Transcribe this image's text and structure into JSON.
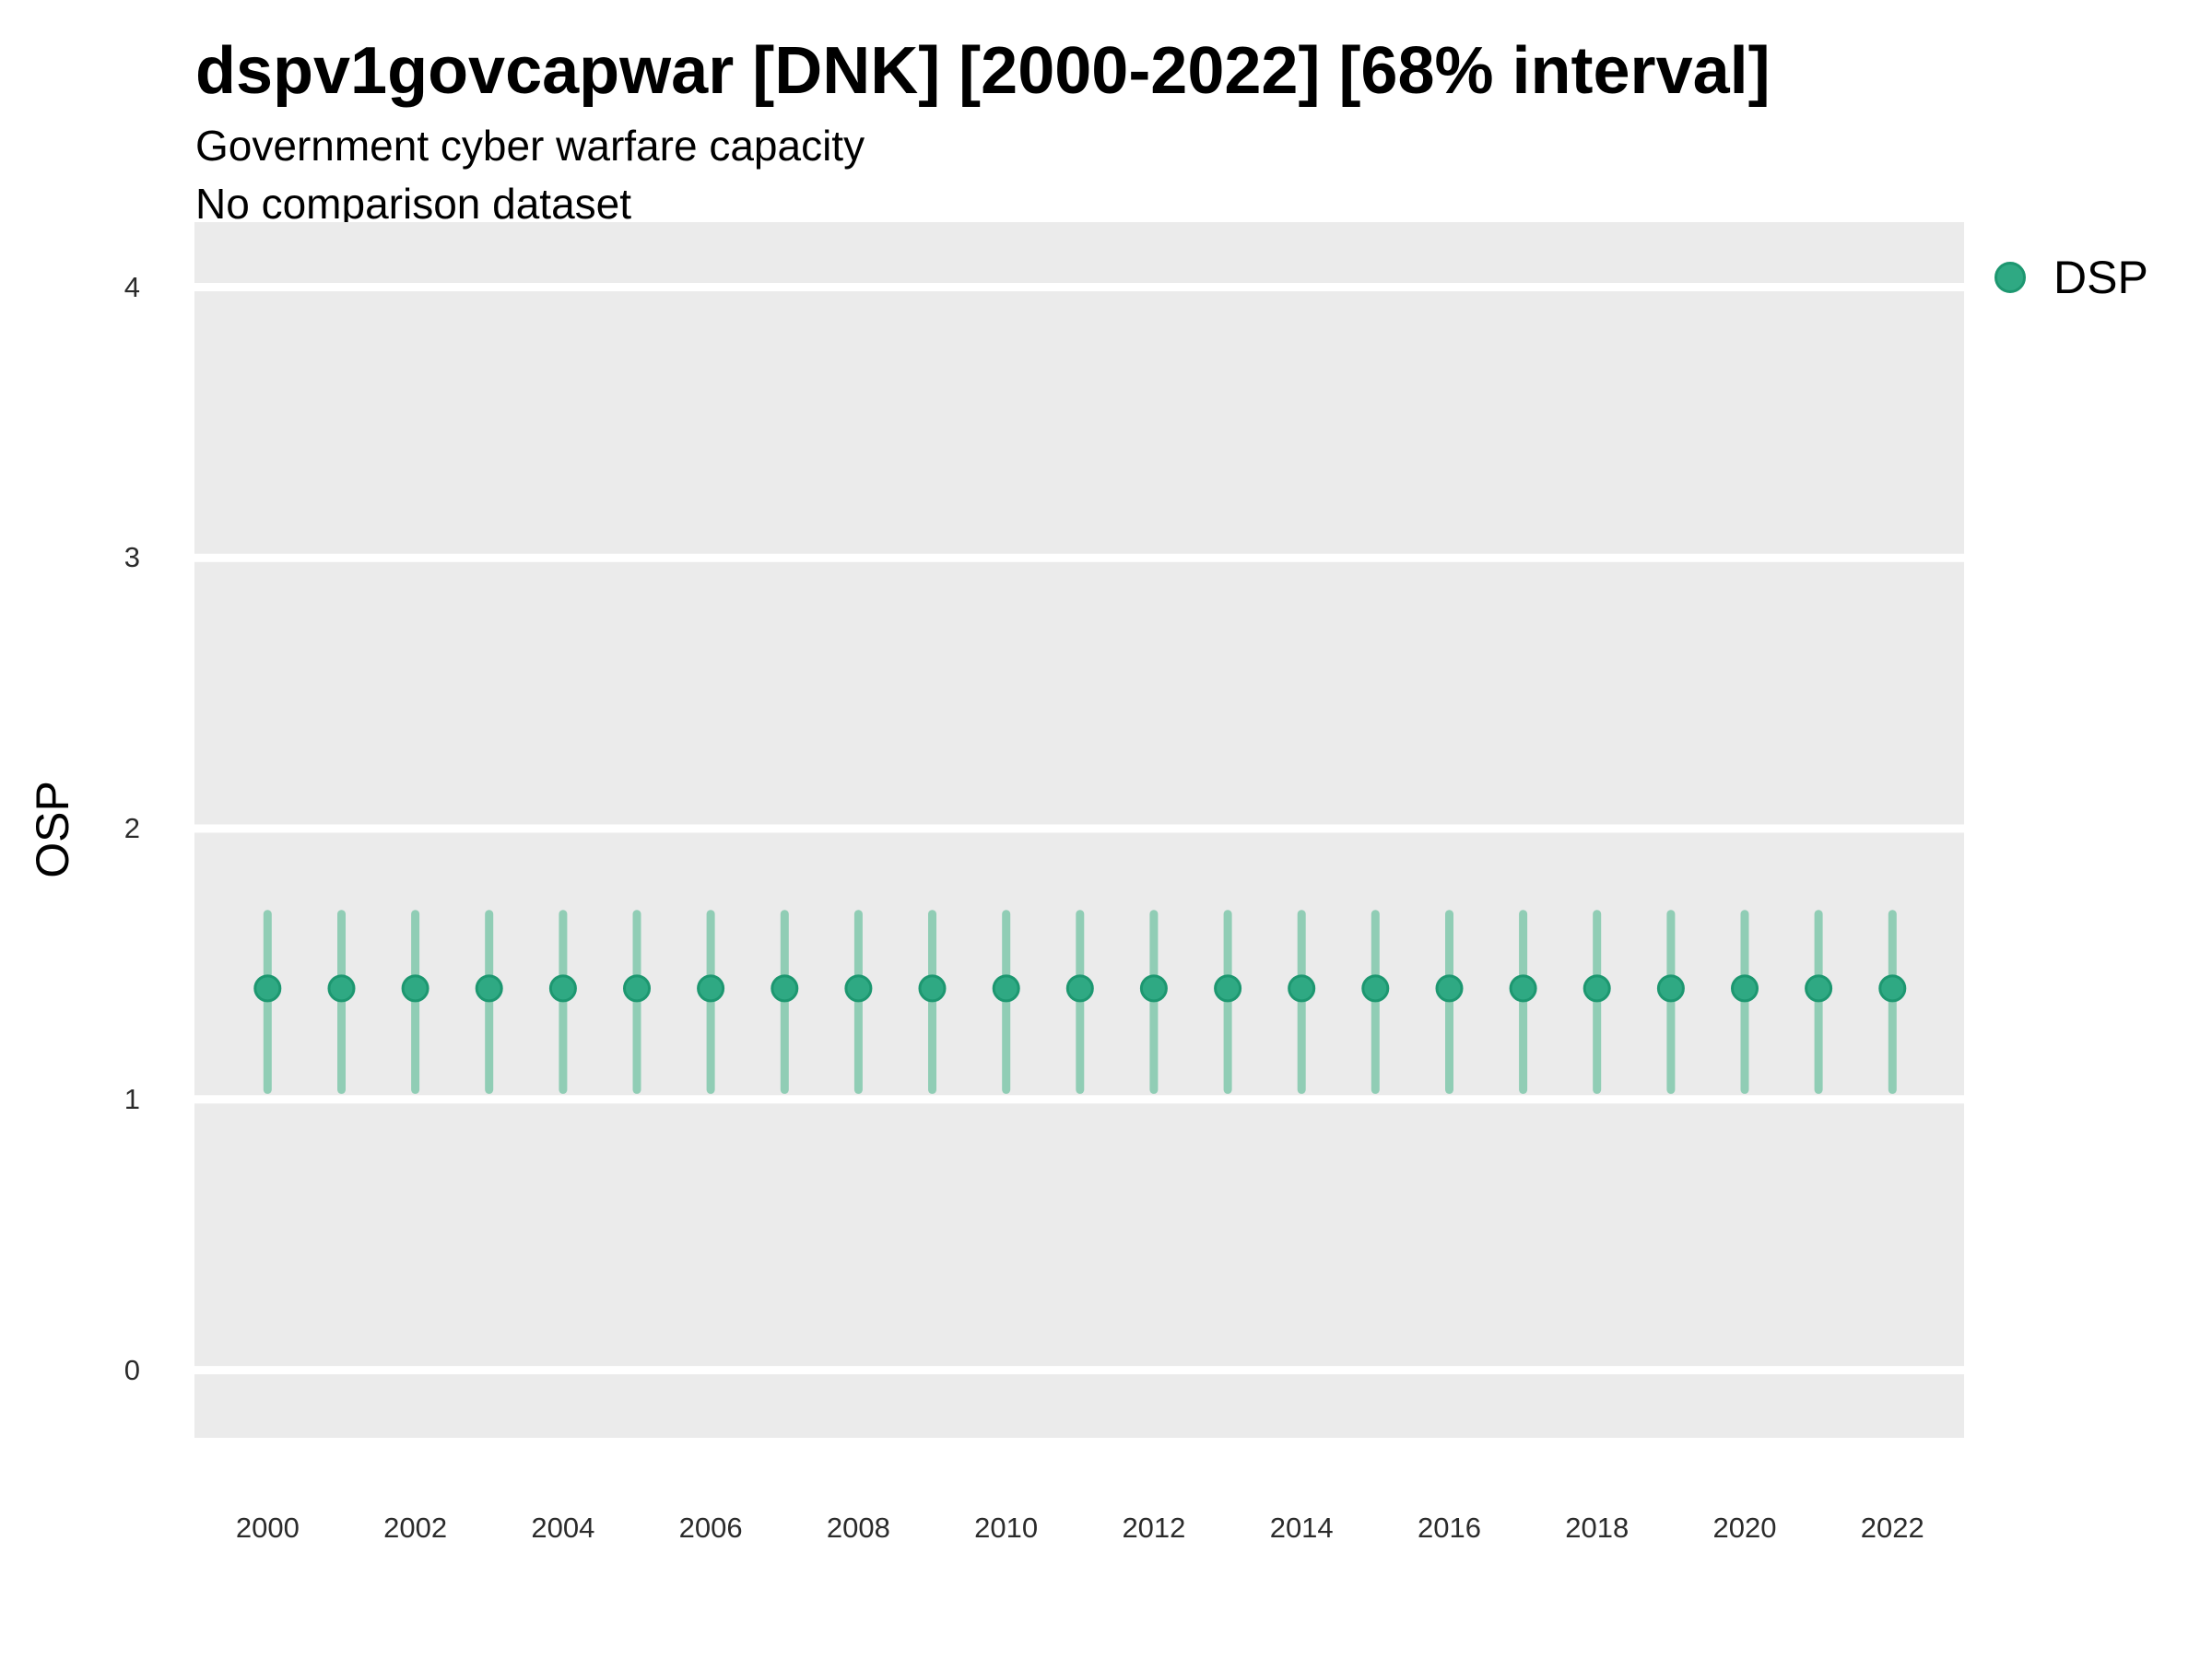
{
  "header": {
    "title": "dspv1govcapwar [DNK] [2000-2022] [68% interval]",
    "subtitle_line1": "Government cyber warfare capacity",
    "subtitle_line2": "No comparison dataset"
  },
  "legend": {
    "label": "DSP",
    "position": "right-top"
  },
  "colors": {
    "panel_bg": "#EBEBEB",
    "gridline": "#FFFFFF",
    "point_fill": "#2FA983",
    "point_stroke": "#1D9770",
    "interval_bar": "#90CDB5",
    "tick_text": "#2B2B2B",
    "title_text": "#000000"
  },
  "chart_data": {
    "type": "scatter",
    "title": "dspv1govcapwar [DNK] [2000-2022] [68% interval]",
    "subtitle": "Government cyber warfare capacity",
    "note": "No comparison dataset",
    "xlabel": "",
    "ylabel": "OSP",
    "interval_pct": 68,
    "country": "DNK",
    "legend_position": "right-top",
    "grid": "major horizontal white lines on grey panel, no minor grid, no axis ticks",
    "xlim": [
      1999.01,
      2022.97
    ],
    "ylim": [
      -0.25,
      4.24
    ],
    "x_tick_labels": [
      2000,
      2002,
      2004,
      2006,
      2008,
      2010,
      2012,
      2014,
      2016,
      2018,
      2020,
      2022
    ],
    "y_tick_labels": [
      0,
      1,
      2,
      3,
      4
    ],
    "series": [
      {
        "name": "DSP",
        "x": [
          2000,
          2001,
          2002,
          2003,
          2004,
          2005,
          2006,
          2007,
          2008,
          2009,
          2010,
          2011,
          2012,
          2013,
          2014,
          2015,
          2016,
          2017,
          2018,
          2019,
          2020,
          2021,
          2022
        ],
        "estimate": [
          1.41,
          1.41,
          1.41,
          1.41,
          1.41,
          1.41,
          1.41,
          1.41,
          1.41,
          1.41,
          1.41,
          1.41,
          1.41,
          1.41,
          1.41,
          1.41,
          1.41,
          1.41,
          1.41,
          1.41,
          1.41,
          1.41,
          1.41
        ],
        "lower_68": [
          1.02,
          1.02,
          1.02,
          1.02,
          1.02,
          1.02,
          1.02,
          1.02,
          1.02,
          1.02,
          1.02,
          1.02,
          1.02,
          1.02,
          1.02,
          1.02,
          1.02,
          1.02,
          1.02,
          1.02,
          1.02,
          1.02,
          1.02
        ],
        "upper_68": [
          1.7,
          1.7,
          1.7,
          1.7,
          1.7,
          1.7,
          1.7,
          1.7,
          1.7,
          1.7,
          1.7,
          1.7,
          1.7,
          1.7,
          1.7,
          1.7,
          1.7,
          1.7,
          1.7,
          1.7,
          1.7,
          1.7,
          1.7
        ]
      }
    ]
  }
}
